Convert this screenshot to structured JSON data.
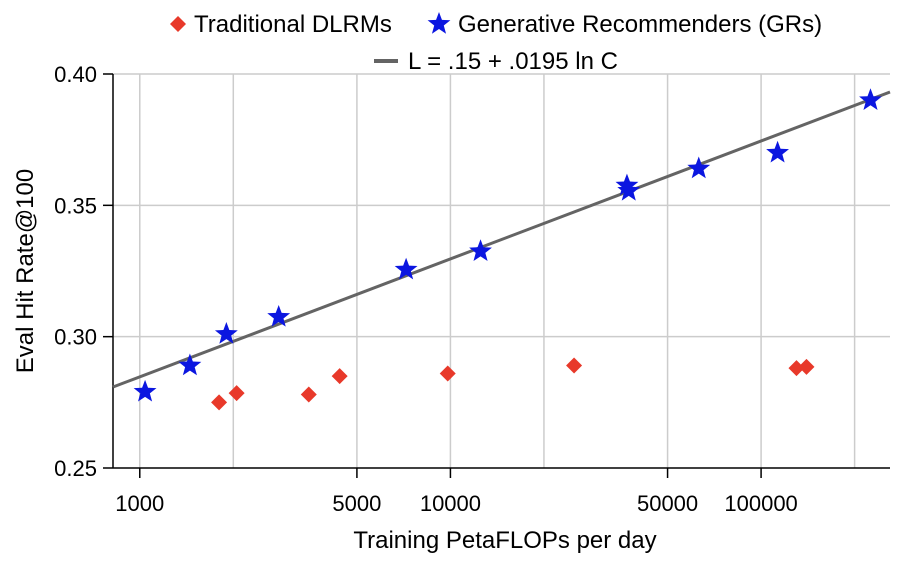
{
  "chart_data": {
    "type": "scatter",
    "x_scale": "log",
    "xlabel": "Training PetaFLOPs per day",
    "ylabel": "Eval Hit Rate@100",
    "xlim": [
      820,
      260000
    ],
    "ylim": [
      0.25,
      0.4
    ],
    "x_ticks": [
      1000,
      5000,
      10000,
      50000,
      100000
    ],
    "x_tick_labels": [
      "1000",
      "5000",
      "10000",
      "50000",
      "100000"
    ],
    "y_ticks": [
      0.25,
      0.3,
      0.35,
      0.4
    ],
    "y_tick_labels": [
      "0.25",
      "0.30",
      "0.35",
      "0.40"
    ],
    "x_grid": [
      1000,
      2000,
      5000,
      10000,
      20000,
      50000,
      100000,
      200000
    ],
    "grid": true,
    "legend_position": "top",
    "series": [
      {
        "name": "Traditional DLRMs",
        "marker": "diamond",
        "color": "#e8392a",
        "points": [
          {
            "x": 1800,
            "y": 0.275
          },
          {
            "x": 2050,
            "y": 0.2785
          },
          {
            "x": 3500,
            "y": 0.278
          },
          {
            "x": 4400,
            "y": 0.285
          },
          {
            "x": 9800,
            "y": 0.286
          },
          {
            "x": 25000,
            "y": 0.289
          },
          {
            "x": 130000,
            "y": 0.288
          },
          {
            "x": 140000,
            "y": 0.2885
          }
        ]
      },
      {
        "name": "Generative Recommenders (GRs)",
        "marker": "star",
        "color": "#0b16e0",
        "points": [
          {
            "x": 1040,
            "y": 0.279
          },
          {
            "x": 1450,
            "y": 0.289
          },
          {
            "x": 1900,
            "y": 0.301
          },
          {
            "x": 2800,
            "y": 0.3075
          },
          {
            "x": 7200,
            "y": 0.3255
          },
          {
            "x": 12500,
            "y": 0.3325
          },
          {
            "x": 37000,
            "y": 0.3575
          },
          {
            "x": 37500,
            "y": 0.3555
          },
          {
            "x": 63000,
            "y": 0.364
          },
          {
            "x": 113000,
            "y": 0.37
          },
          {
            "x": 225000,
            "y": 0.39
          }
        ]
      }
    ],
    "fit_line": {
      "label": "L = .15 + .0195 ln C",
      "color": "#646464",
      "intercept": 0.15,
      "slope": 0.0195,
      "x_range": [
        820,
        260000
      ]
    }
  }
}
